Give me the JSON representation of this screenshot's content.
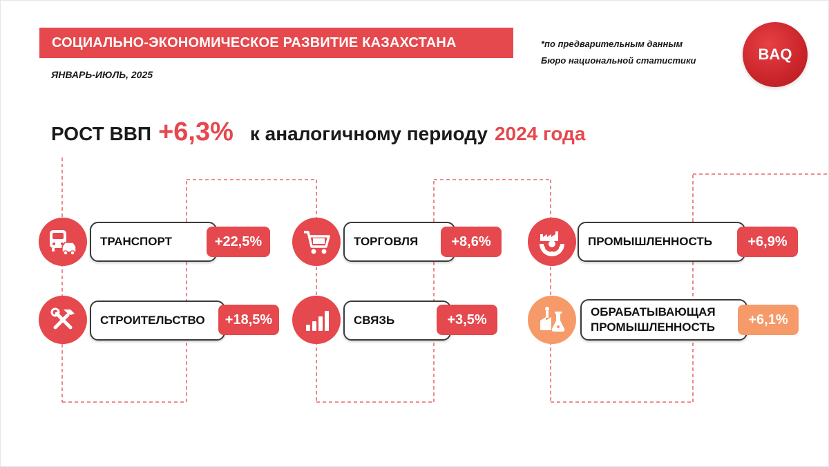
{
  "header": {
    "title": "СОЦИАЛЬНО-ЭКОНОМИЧЕСКОЕ РАЗВИТИЕ КАЗАХСТАНА",
    "period": "ЯНВАРЬ-ИЮЛЬ, 2025",
    "note_line1": "*по предварительным данным",
    "note_line2": "Бюро национальной статистики",
    "logo": "BAQ"
  },
  "headline": {
    "prefix": "РОСТ ВВП",
    "value": "+6,3%",
    "middle": "к аналогичному периоду",
    "year": "2024 года"
  },
  "colors": {
    "accent": "#e5484d",
    "accent_light": "#f59a68",
    "text": "#1a1a1a"
  },
  "sectors": [
    {
      "label": "ТРАНСПОРТ",
      "value": "+22,5%",
      "icon": "transport-icon"
    },
    {
      "label": "СТРОИТЕЛЬСТВО",
      "value": "+18,5%",
      "icon": "construction-tools-icon"
    },
    {
      "label": "ТОРГОВЛЯ",
      "value": "+8,6%",
      "icon": "shopping-cart-icon"
    },
    {
      "label": "СВЯЗЬ",
      "value": "+3,5%",
      "icon": "signal-bars-icon"
    },
    {
      "label": "ПРОМЫШЛЕННОСТЬ",
      "value": "+6,9%",
      "icon": "factory-gear-icon"
    },
    {
      "label": "ОБРАБАТЫВАЮЩАЯ ПРОМЫШЛЕННОСТЬ",
      "label_line1": "ОБРАБАТЫВАЮЩАЯ",
      "label_line2": "ПРОМЫШЛЕННОСТЬ",
      "value": "+6,1%",
      "icon": "processing-plant-icon"
    }
  ]
}
